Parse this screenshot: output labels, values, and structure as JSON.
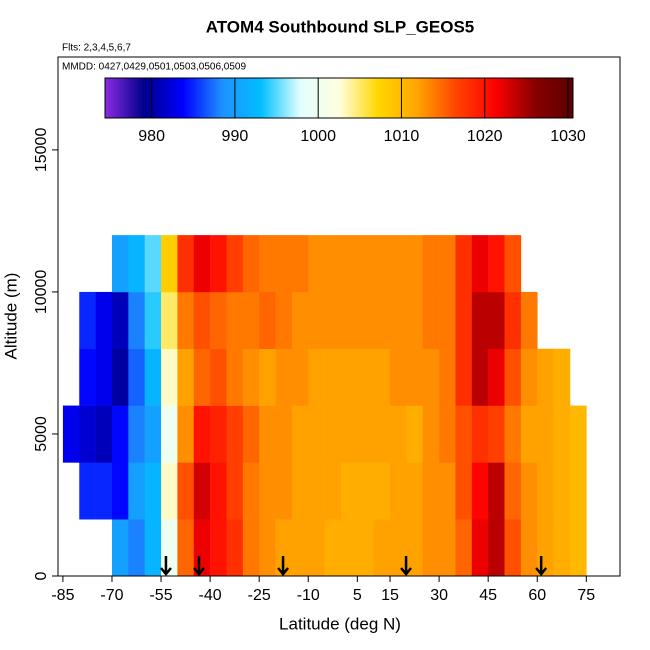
{
  "chart_data": {
    "type": "heatmap",
    "title": "ATOM4 Southbound SLP_GEOS5",
    "flights_note": "Flts: 2,3,4,5,6,7",
    "dates_note": "MMDD: 0427,0429,0501,0503,0506,0509",
    "x_label": "Latitude (deg N)",
    "y_label": "Altitude (m)",
    "xlim": [
      -86.5,
      85.3
    ],
    "ylim": [
      0,
      18270
    ],
    "xticks": [
      -85,
      -70,
      -55,
      -40,
      -25,
      -10,
      5,
      15,
      30,
      45,
      60,
      75
    ],
    "yticks": [
      0,
      5000,
      10000,
      15000
    ],
    "lat_edges": [
      -85,
      -80,
      -75,
      -70,
      -65,
      -60,
      -55,
      -50,
      -45,
      -40,
      -35,
      -30,
      -25,
      -20,
      -15,
      -10,
      -5,
      0,
      5,
      10,
      15,
      20,
      25,
      30,
      35,
      40,
      45,
      50,
      55,
      60,
      65,
      70,
      75
    ],
    "alt_edges": [
      0,
      2000,
      4000,
      6000,
      8000,
      10000,
      12000
    ],
    "values": [
      [
        null,
        null,
        null,
        990,
        988,
        992,
        1000,
        1015,
        1022,
        1020,
        1018,
        1014,
        1013,
        1012,
        1012,
        1012,
        1011,
        1011,
        1011,
        1012,
        1012,
        1012,
        1013,
        1013,
        1015,
        1022,
        1024,
        1016,
        1013,
        1012,
        1011,
        1010
      ],
      [
        null,
        985,
        985,
        984,
        990,
        992,
        1003,
        1016,
        1023,
        1020,
        1017,
        1014,
        1013,
        1013,
        1012,
        1012,
        1012,
        1011,
        1011,
        1011,
        1012,
        1012,
        1013,
        1013,
        1016,
        1021,
        1024,
        1015,
        1013,
        1012,
        1011,
        1010
      ],
      [
        983,
        982,
        981,
        984,
        988,
        990,
        1000,
        1013,
        1020,
        1019,
        1017,
        1015,
        1013,
        1013,
        1012,
        1012,
        1012,
        1012,
        1012,
        1012,
        1012,
        1011,
        1013,
        1014,
        1016,
        1018,
        1017,
        1014,
        1012,
        1012,
        1011,
        1010
      ],
      [
        null,
        984,
        983,
        980,
        987,
        992,
        1003,
        1012,
        1015,
        1016,
        1014,
        1013,
        1012,
        1013,
        1013,
        1012,
        1012,
        1012,
        1012,
        1012,
        1013,
        1013,
        1013,
        1014,
        1018,
        1024,
        1022,
        1016,
        1013,
        1012,
        1011,
        null
      ],
      [
        null,
        985,
        983,
        981,
        988,
        994,
        1005,
        1014,
        1016,
        1015,
        1014,
        1014,
        1015,
        1014,
        1013,
        1013,
        1013,
        1013,
        1013,
        1013,
        1013,
        1013,
        1014,
        1014,
        1018,
        1024,
        1024,
        1018,
        1014,
        null,
        null,
        null
      ],
      [
        null,
        null,
        null,
        990,
        992,
        995,
        1008,
        1018,
        1022,
        1020,
        1017,
        1015,
        1014,
        1014,
        1014,
        1013,
        1013,
        1013,
        1013,
        1013,
        1013,
        1013,
        1014,
        1014,
        1018,
        1022,
        1020,
        1016,
        null,
        null,
        null,
        null
      ]
    ],
    "colorbar_lim": [
      974.4,
      1030.6
    ],
    "colorbar_ticks": [
      980,
      990,
      1000,
      1010,
      1020,
      1030
    ],
    "colors": [
      "#8a2be2",
      "#00008b",
      "#0000ff",
      "#1e90ff",
      "#00bfff",
      "#e0ffff",
      "#ffffe0",
      "#ffd700",
      "#ffa500",
      "#ff4500",
      "#ff0000",
      "#8b0000",
      "#5a0000"
    ],
    "arrows": [
      -53.5,
      -43.4,
      -17.7,
      19.9,
      61.2
    ]
  }
}
